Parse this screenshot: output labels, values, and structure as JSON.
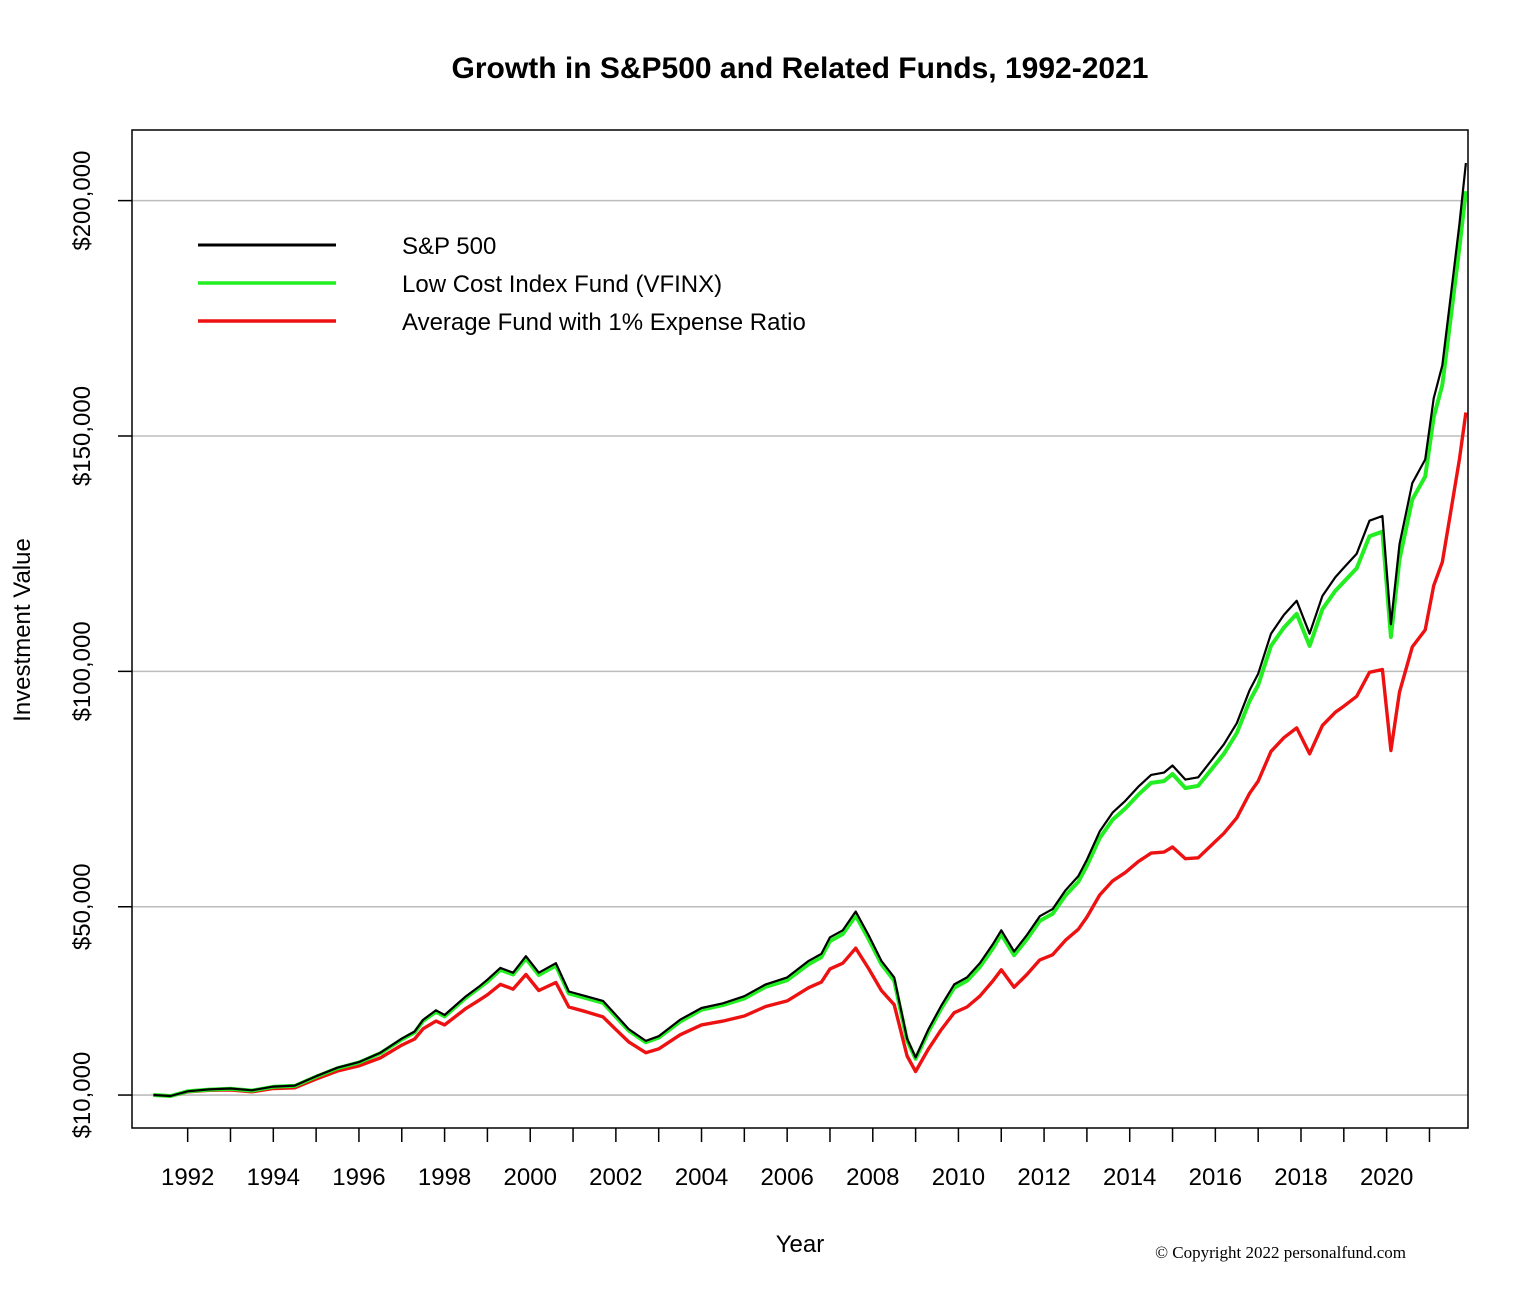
{
  "chart_data": {
    "type": "line",
    "title": "Growth in S&P500 and Related Funds, 1992-2021",
    "xlabel": "Year",
    "ylabel": "Investment Value",
    "xlim": [
      1990.7,
      2021.9
    ],
    "ylim": [
      3000,
      215000
    ],
    "x_ticks": [
      1992,
      1993,
      1994,
      1995,
      1996,
      1997,
      1998,
      1999,
      2000,
      2001,
      2002,
      2003,
      2004,
      2005,
      2006,
      2007,
      2008,
      2009,
      2010,
      2011,
      2012,
      2013,
      2014,
      2015,
      2016,
      2017,
      2018,
      2019,
      2020,
      2021
    ],
    "x_tick_labels": [
      "1992",
      "",
      "1994",
      "",
      "1996",
      "",
      "1998",
      "",
      "2000",
      "",
      "2002",
      "",
      "2004",
      "",
      "2006",
      "",
      "2008",
      "",
      "2010",
      "",
      "2012",
      "",
      "2014",
      "",
      "2016",
      "",
      "2018",
      "",
      "2020",
      ""
    ],
    "y_ticks": [
      10000,
      50000,
      100000,
      150000,
      200000
    ],
    "y_tick_labels": [
      "$10,000",
      "$50,000",
      "$100,000",
      "$150,000",
      "$200,000"
    ],
    "grid": "horizontal",
    "legend_position": "top-left",
    "x": [
      1991.2,
      1991.6,
      1992.0,
      1992.5,
      1993.0,
      1993.5,
      1994.0,
      1994.5,
      1995.0,
      1995.5,
      1996.0,
      1996.5,
      1997.0,
      1997.3,
      1997.5,
      1997.8,
      1998.0,
      1998.5,
      1998.8,
      1999.0,
      1999.3,
      1999.6,
      1999.9,
      2000.2,
      2000.6,
      2000.9,
      2001.3,
      2001.7,
      2002.0,
      2002.3,
      2002.7,
      2003.0,
      2003.5,
      2004.0,
      2004.5,
      2005.0,
      2005.5,
      2006.0,
      2006.5,
      2006.8,
      2007.0,
      2007.3,
      2007.6,
      2007.9,
      2008.2,
      2008.5,
      2008.8,
      2009.0,
      2009.3,
      2009.6,
      2009.9,
      2010.2,
      2010.5,
      2010.8,
      2011.0,
      2011.3,
      2011.6,
      2011.9,
      2012.2,
      2012.5,
      2012.8,
      2013.0,
      2013.3,
      2013.6,
      2013.9,
      2014.2,
      2014.5,
      2014.8,
      2015.0,
      2015.3,
      2015.6,
      2015.9,
      2016.2,
      2016.5,
      2016.8,
      2017.0,
      2017.3,
      2017.6,
      2017.9,
      2018.2,
      2018.5,
      2018.8,
      2019.0,
      2019.3,
      2019.6,
      2019.9,
      2020.1,
      2020.3,
      2020.6,
      2020.9,
      2021.1,
      2021.3,
      2021.5,
      2021.7,
      2021.85
    ],
    "series": [
      {
        "name": "S&P 500",
        "color": "#000000",
        "values": [
          10000,
          9800,
          10800,
          11200,
          11400,
          11000,
          11800,
          12000,
          14000,
          15800,
          17000,
          19000,
          22000,
          23500,
          26000,
          28000,
          27000,
          31000,
          33000,
          34500,
          37000,
          36000,
          39500,
          36000,
          38000,
          32000,
          31000,
          30000,
          27000,
          24000,
          21500,
          22500,
          26000,
          28500,
          29500,
          31000,
          33500,
          35000,
          38500,
          40000,
          43500,
          45000,
          49000,
          44000,
          38500,
          35000,
          22000,
          18000,
          24000,
          29000,
          33500,
          35000,
          38000,
          42000,
          45000,
          40500,
          44000,
          48000,
          49500,
          53500,
          56500,
          60000,
          66000,
          70000,
          72500,
          75500,
          78000,
          78500,
          80000,
          77000,
          77500,
          81000,
          84500,
          89000,
          96000,
          99500,
          108000,
          112000,
          115000,
          108000,
          116000,
          120000,
          122000,
          125000,
          132000,
          133000,
          110000,
          127000,
          140000,
          145000,
          158000,
          165000,
          180000,
          195000,
          208000
        ]
      },
      {
        "name": "Low Cost Index Fund (VFINX)",
        "color": "#22ee22",
        "values": [
          10000,
          9800,
          10800,
          11150,
          11350,
          10950,
          11750,
          11950,
          13900,
          15700,
          16900,
          18900,
          21800,
          23300,
          25800,
          27700,
          26700,
          30700,
          32700,
          34100,
          36600,
          35600,
          39000,
          35500,
          37500,
          31600,
          30600,
          29600,
          26600,
          23700,
          21200,
          22200,
          25600,
          28100,
          29100,
          30500,
          33000,
          34400,
          37800,
          39300,
          42700,
          44200,
          48100,
          43200,
          37800,
          34300,
          21600,
          17700,
          23500,
          28400,
          32800,
          34300,
          37200,
          41100,
          44100,
          39700,
          43100,
          47000,
          48500,
          52400,
          55300,
          58700,
          64600,
          68500,
          70900,
          73800,
          76300,
          76700,
          78200,
          75200,
          75700,
          79100,
          82500,
          86900,
          93700,
          97100,
          105400,
          109300,
          112200,
          105400,
          113200,
          117100,
          119000,
          121900,
          128700,
          129700,
          107300,
          123800,
          136500,
          141400,
          154000,
          160800,
          175400,
          190000,
          202000
        ]
      },
      {
        "name": "Average Fund with 1% Expense Ratio",
        "color": "#ee1111",
        "values": [
          10000,
          9780,
          10700,
          11000,
          11100,
          10700,
          11400,
          11550,
          13400,
          15100,
          16200,
          17900,
          20600,
          21900,
          24100,
          25700,
          24900,
          28400,
          30100,
          31300,
          33500,
          32500,
          35600,
          32200,
          33900,
          28700,
          27700,
          26600,
          23900,
          21300,
          19000,
          19800,
          22800,
          24900,
          25700,
          26800,
          28800,
          30000,
          32800,
          34000,
          36800,
          38000,
          41200,
          36900,
          32200,
          29200,
          18300,
          15000,
          19800,
          23900,
          27500,
          28700,
          31000,
          34200,
          36600,
          32900,
          35600,
          38700,
          39800,
          42900,
          45200,
          47800,
          52500,
          55500,
          57300,
          59600,
          61400,
          61600,
          62700,
          60200,
          60400,
          63000,
          65600,
          68900,
          74100,
          76700,
          83000,
          85900,
          88000,
          82500,
          88500,
          91300,
          92600,
          94700,
          99800,
          100400,
          83200,
          95600,
          105200,
          108800,
          118200,
          123200,
          134100,
          145000,
          155000
        ]
      }
    ]
  },
  "copyright": "© Copyright 2022 personalfund.com"
}
